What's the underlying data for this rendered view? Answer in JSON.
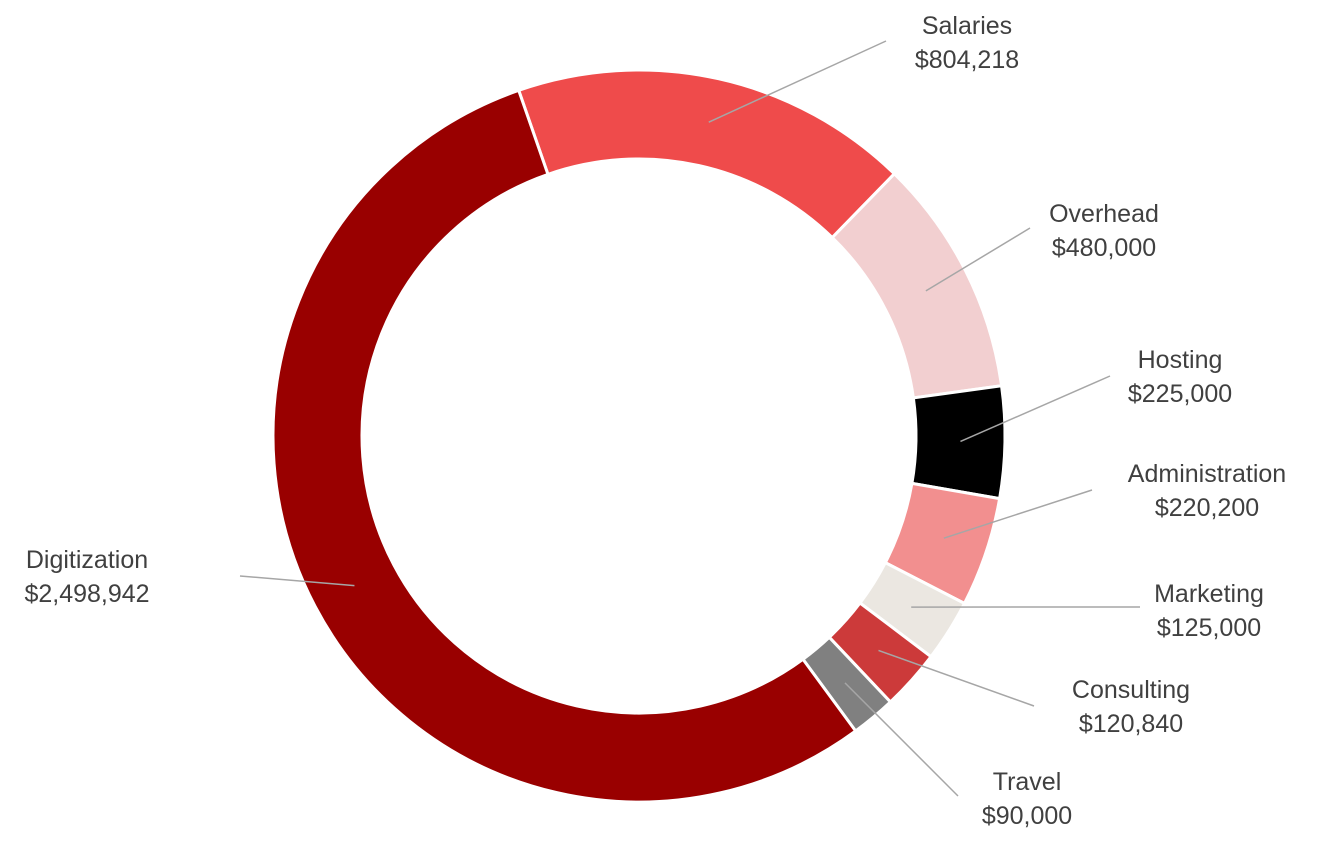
{
  "chart_data": {
    "type": "pie",
    "variant": "donut",
    "title": "",
    "categories": [
      "Salaries",
      "Overhead",
      "Hosting",
      "Administration",
      "Marketing",
      "Consulting",
      "Travel",
      "Digitization"
    ],
    "values": [
      804218,
      480000,
      225000,
      220200,
      125000,
      120840,
      90000,
      2498942
    ],
    "value_labels": [
      "$804,218",
      "$480,000",
      "$225,000",
      "$220,200",
      "$125,000",
      "$120,840",
      "$90,000",
      "$2,498,942"
    ],
    "colors": [
      "#ef4b4b",
      "#f2cfd0",
      "#000000",
      "#f28f8f",
      "#ebe7e1",
      "#cc3a3a",
      "#808080",
      "#990000"
    ],
    "legend": "none (labels beside each slice)"
  }
}
